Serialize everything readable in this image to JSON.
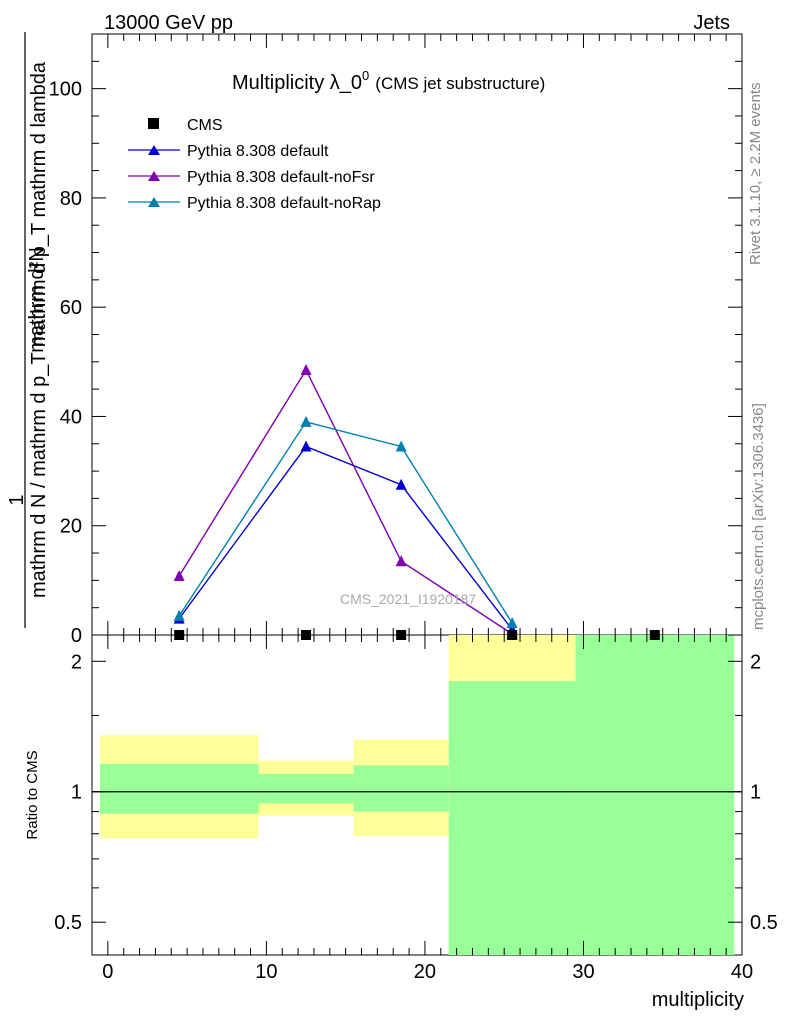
{
  "header": {
    "left": "13000 GeV pp",
    "right": "Jets"
  },
  "side_text": {
    "rivet": "Rivet 3.1.10, ≥ 2.2M events",
    "site": "mcplots.cern.ch [arXiv:1306.3436]"
  },
  "watermark": "CMS_2021_I1920187",
  "chart_data": [
    {
      "type": "line",
      "title": "Multiplicity λ_0",
      "title_sup": "0",
      "subtitle": "(CMS jet substructure)",
      "ylabel_numerator": "1",
      "ylabel_denominator": "mathrm d N / mathrm d p_T mathrm d p_T mathrm d lambda",
      "ylabel_upper": "mathrm d²N",
      "ylim": [
        0,
        110
      ],
      "yticks": [
        0,
        20,
        40,
        60,
        80,
        100
      ],
      "xlim": [
        -1,
        40
      ],
      "legend_position": "top-left",
      "data": {
        "name": "CMS",
        "x": [
          4.5,
          12.5,
          18.5,
          25.5,
          34.5
        ],
        "y": [
          0,
          0,
          0,
          0,
          0
        ]
      },
      "series": [
        {
          "name": "Pythia 8.308 default",
          "color": "#0000cc",
          "x": [
            4.5,
            12.5,
            18.5,
            25.5
          ],
          "y": [
            3.0,
            34.5,
            27.5,
            1.0
          ]
        },
        {
          "name": "Pythia 8.308 default-noFsr",
          "color": "#8000b0",
          "x": [
            4.5,
            12.5,
            18.5,
            25.5
          ],
          "y": [
            10.8,
            48.5,
            13.5,
            0.2
          ]
        },
        {
          "name": "Pythia 8.308 default-noRap",
          "color": "#0080b0",
          "x": [
            4.5,
            12.5,
            18.5,
            25.5
          ],
          "y": [
            3.5,
            39.0,
            34.5,
            2.2
          ]
        }
      ]
    },
    {
      "type": "area",
      "ylabel": "Ratio to CMS",
      "xlabel": "multiplicity",
      "yscale": "log",
      "ylim": [
        0.42,
        2.3
      ],
      "yticks": [
        0.5,
        1,
        2
      ],
      "ytick_labels": [
        "0.5",
        "1",
        "2"
      ],
      "xlim": [
        -1,
        40
      ],
      "xticks": [
        0,
        10,
        20,
        30,
        40
      ],
      "reference_line": 1,
      "bands": [
        {
          "x_low": -0.5,
          "x_high": 9.5,
          "yellow": [
            0.78,
            1.35
          ],
          "green": [
            0.89,
            1.16
          ]
        },
        {
          "x_low": 9.5,
          "x_high": 15.5,
          "yellow": [
            0.88,
            1.18
          ],
          "green": [
            0.94,
            1.1
          ]
        },
        {
          "x_low": 15.5,
          "x_high": 21.5,
          "yellow": [
            0.79,
            1.32
          ],
          "green": [
            0.9,
            1.15
          ]
        },
        {
          "x_low": 21.5,
          "x_high": 29.5,
          "yellow": [
            0.42,
            2.3
          ],
          "green": [
            0.42,
            1.8
          ]
        },
        {
          "x_low": 29.5,
          "x_high": 39.5,
          "yellow": [
            0.42,
            2.3
          ],
          "green": [
            0.42,
            2.3
          ]
        }
      ]
    }
  ]
}
